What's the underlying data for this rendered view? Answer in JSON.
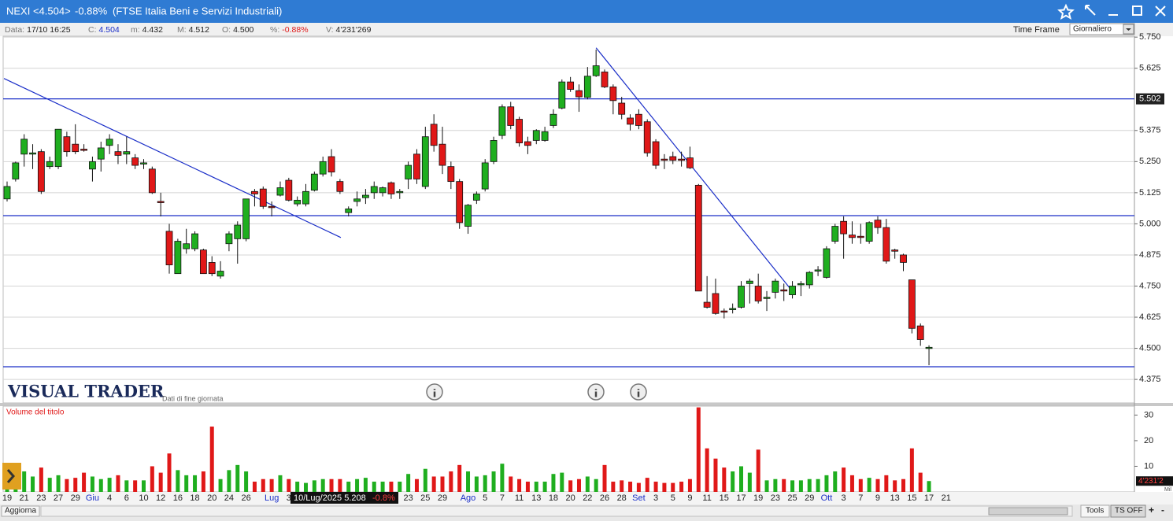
{
  "header": {
    "symbol": "NEXI <4.504>",
    "change": "-0.88%",
    "index_name": "(FTSE Italia Beni e Servizi Industriali)"
  },
  "info_bar": [
    {
      "label": "Data:",
      "value": "17/10 16:25"
    },
    {
      "label": "C:",
      "value": "4.504"
    },
    {
      "label": "m:",
      "value": "4.432"
    },
    {
      "label": "M:",
      "value": "4.512"
    },
    {
      "label": "O:",
      "value": "4.500"
    },
    {
      "label": "%:",
      "value": "-0.88%"
    },
    {
      "label": "V:",
      "value": "4'231'269"
    }
  ],
  "time_frame": {
    "label": "Time Frame",
    "value": "Giornaliero"
  },
  "brand": {
    "name": "VISUAL TRADER",
    "subtitle": "Dati di fine giornata"
  },
  "tooltip": {
    "text": "10/Lug/2025 5.208",
    "change": "-0.8%"
  },
  "footer": {
    "refresh": "Aggiorna",
    "tools": "Tools",
    "ts": "TS OFF"
  },
  "chart_data": [
    {
      "type": "candlestick",
      "up_color": "#1fae1f",
      "down_color": "#e01818",
      "open": [
        5.1,
        5.18,
        5.28,
        5.28,
        5.29,
        5.23,
        5.23,
        5.35,
        5.32,
        5.3,
        5.22,
        5.26,
        5.315,
        5.29,
        5.28,
        5.265,
        5.24,
        5.22,
        5.09,
        4.97,
        4.8,
        4.9,
        4.9,
        4.895,
        4.845,
        4.79,
        4.92,
        4.94,
        4.94,
        5.13,
        5.14,
        5.07,
        5.115,
        5.175,
        5.08,
        5.08,
        5.135,
        5.2,
        5.27,
        5.17,
        5.045,
        5.09,
        5.105,
        5.125,
        5.125,
        5.165,
        5.125,
        5.18,
        5.28,
        5.15,
        5.4,
        5.32,
        5.23,
        5.17,
        4.99,
        5.095,
        5.14,
        5.25,
        5.355,
        5.47,
        5.42,
        5.33,
        5.335,
        5.335,
        5.395,
        5.465,
        5.57,
        5.535,
        5.508,
        5.595,
        5.61,
        5.55,
        5.485,
        5.425,
        5.44,
        5.41,
        5.33,
        5.26,
        5.27,
        5.26,
        5.265,
        5.155,
        4.685,
        4.72,
        4.65,
        4.655,
        4.665,
        4.76,
        4.75,
        4.7,
        4.725,
        4.735,
        4.715,
        4.755,
        4.755,
        4.81,
        4.785,
        4.93,
        5.01,
        4.955,
        4.95,
        4.93,
        5.015,
        4.985,
        4.895,
        4.875,
        4.775,
        4.59,
        4.5,
        null,
        null
      ],
      "high": [
        5.17,
        5.25,
        5.36,
        5.32,
        5.3,
        5.27,
        5.38,
        5.37,
        5.4,
        5.32,
        5.27,
        5.33,
        5.36,
        5.32,
        5.35,
        5.28,
        5.26,
        5.23,
        5.125,
        5.0,
        4.94,
        4.98,
        4.97,
        4.9,
        4.87,
        4.85,
        4.97,
        5.01,
        5.1,
        5.14,
        5.15,
        5.09,
        5.17,
        5.185,
        5.11,
        5.16,
        5.21,
        5.27,
        5.3,
        5.18,
        5.07,
        5.13,
        5.14,
        5.17,
        5.15,
        5.17,
        5.14,
        5.25,
        5.3,
        5.39,
        5.44,
        5.39,
        5.25,
        5.18,
        5.08,
        5.13,
        5.26,
        5.35,
        5.48,
        5.49,
        5.43,
        5.35,
        5.38,
        5.39,
        5.46,
        5.58,
        5.59,
        5.56,
        5.63,
        5.7,
        5.62,
        5.56,
        5.51,
        5.44,
        5.46,
        5.42,
        5.34,
        5.28,
        5.29,
        5.29,
        5.31,
        5.16,
        4.79,
        4.78,
        4.66,
        4.68,
        4.77,
        4.78,
        4.8,
        4.73,
        4.78,
        4.76,
        4.77,
        4.77,
        4.81,
        4.83,
        4.91,
        5.0,
        5.03,
        5.01,
        5.0,
        5.01,
        5.03,
        5.02,
        4.9,
        4.88,
        4.775,
        4.6,
        4.512,
        null,
        null
      ],
      "low": [
        5.09,
        5.17,
        5.23,
        5.22,
        5.12,
        5.22,
        5.22,
        5.27,
        5.28,
        5.29,
        5.17,
        5.21,
        5.28,
        5.24,
        5.24,
        5.22,
        5.22,
        5.12,
        5.03,
        4.8,
        4.8,
        4.88,
        4.89,
        4.8,
        4.79,
        4.78,
        4.89,
        4.84,
        4.93,
        5.07,
        5.06,
        5.03,
        5.11,
        5.09,
        5.07,
        5.07,
        5.13,
        5.19,
        5.19,
        5.12,
        5.03,
        5.07,
        5.08,
        5.1,
        5.11,
        5.1,
        5.1,
        5.14,
        5.16,
        5.14,
        5.29,
        5.2,
        5.14,
        4.98,
        4.96,
        5.08,
        5.13,
        5.24,
        5.34,
        5.38,
        5.31,
        5.28,
        5.32,
        5.33,
        5.385,
        5.46,
        5.53,
        5.45,
        5.5,
        5.59,
        5.545,
        5.44,
        5.42,
        5.375,
        5.38,
        5.27,
        5.22,
        5.22,
        5.24,
        5.23,
        5.22,
        4.73,
        4.66,
        4.635,
        4.62,
        4.64,
        4.66,
        4.68,
        4.68,
        4.65,
        4.7,
        4.69,
        4.7,
        4.71,
        4.74,
        4.79,
        4.78,
        4.92,
        4.86,
        4.92,
        4.92,
        4.92,
        4.96,
        4.84,
        4.86,
        4.81,
        4.56,
        4.51,
        4.432,
        null,
        null
      ],
      "close": [
        5.15,
        5.245,
        5.34,
        5.285,
        5.13,
        5.25,
        5.38,
        5.29,
        5.29,
        5.295,
        5.25,
        5.305,
        5.34,
        5.275,
        5.29,
        5.235,
        5.245,
        5.125,
        5.085,
        4.835,
        4.93,
        4.92,
        4.96,
        4.8,
        4.8,
        4.81,
        4.96,
        4.995,
        5.1,
        5.12,
        5.07,
        5.065,
        5.145,
        5.095,
        5.095,
        5.13,
        5.2,
        5.25,
        5.208,
        5.13,
        5.06,
        5.1,
        5.115,
        5.15,
        5.145,
        5.12,
        5.13,
        5.235,
        5.18,
        5.35,
        5.315,
        5.235,
        5.17,
        5.005,
        5.075,
        5.12,
        5.245,
        5.335,
        5.47,
        5.395,
        5.325,
        5.315,
        5.375,
        5.37,
        5.44,
        5.57,
        5.54,
        5.51,
        5.593,
        5.635,
        5.55,
        5.495,
        5.44,
        5.4,
        5.395,
        5.285,
        5.235,
        5.255,
        5.255,
        5.255,
        5.225,
        4.73,
        4.665,
        4.64,
        4.645,
        4.66,
        4.75,
        4.77,
        4.69,
        4.705,
        4.77,
        4.73,
        4.75,
        4.76,
        4.805,
        4.815,
        4.9,
        4.99,
        4.96,
        4.945,
        4.945,
        5.005,
        4.985,
        4.85,
        4.89,
        4.845,
        4.58,
        4.535,
        4.504,
        null,
        null
      ],
      "ylim": [
        4.29,
        5.76
      ],
      "yticks": [
        4.375,
        {
          "value": 4.5,
          "label": "4.500"
        },
        4.625,
        {
          "value": 4.75,
          "label": "4.750"
        },
        4.875,
        {
          "value": 5,
          "label": "5.000"
        },
        5.125,
        {
          "value": 5.25,
          "label": "5.250"
        },
        5.375,
        5.625,
        {
          "value": 5.75,
          "label": "5.750"
        }
      ],
      "grid": true,
      "hlines": [
        {
          "value": 5.502,
          "color": "#1a2ec8",
          "badge": true
        },
        {
          "value": 5.033,
          "color": "#1a2ec8"
        },
        {
          "value": 4.426,
          "color": "#1a2ec8"
        }
      ],
      "trendlines": [
        {
          "x": [
            -0.37,
            39.1
          ],
          "y": [
            5.584,
            4.945
          ],
          "color": "#1a2ec8"
        },
        {
          "x": [
            69,
            92
          ],
          "y": [
            5.707,
            4.729
          ],
          "color": "#1a2ec8"
        }
      ]
    },
    {
      "type": "bar",
      "title": "Volume del titolo",
      "unit": "Mil",
      "last_label": "4'231'2",
      "categories": [
        "19",
        null,
        "21",
        null,
        "23",
        null,
        "27",
        null,
        "29",
        null,
        "Giu",
        null,
        "4",
        null,
        "6",
        null,
        "10",
        null,
        "12",
        null,
        "16",
        null,
        "18",
        null,
        "20",
        null,
        "24",
        null,
        "26",
        null,
        null,
        "Lug",
        null,
        "3",
        null,
        null,
        null,
        null,
        null,
        null,
        null,
        null,
        null,
        null,
        null,
        null,
        null,
        "23",
        null,
        "25",
        null,
        "29",
        null,
        null,
        "Ago",
        null,
        "5",
        null,
        "7",
        null,
        "11",
        null,
        "13",
        null,
        "18",
        null,
        "20",
        null,
        "22",
        null,
        "26",
        null,
        "28",
        null,
        "Set",
        null,
        "3",
        null,
        "5",
        null,
        "9",
        null,
        "11",
        null,
        "15",
        null,
        "17",
        null,
        "19",
        null,
        "23",
        null,
        "25",
        null,
        "29",
        null,
        "Ott",
        null,
        "3",
        null,
        "7",
        null,
        "9",
        null,
        "13",
        null,
        "15",
        null,
        "17",
        null,
        "21"
      ],
      "values": [
        6,
        8,
        8,
        6,
        9.5,
        5.5,
        6.5,
        5,
        5.5,
        7.5,
        6,
        5,
        5.5,
        6.5,
        4.5,
        4.5,
        4.5,
        10,
        7.5,
        15,
        8.5,
        6.5,
        6.5,
        8,
        25.5,
        5,
        8.5,
        10.5,
        8,
        4,
        5,
        5,
        6.5,
        5,
        4,
        3.5,
        4.5,
        5,
        5,
        5,
        4,
        5,
        5.5,
        4,
        4,
        4,
        4,
        7,
        5,
        9,
        6,
        6,
        8,
        10.5,
        8,
        6,
        6.5,
        8,
        11,
        6,
        5,
        4,
        4,
        4,
        7,
        7.5,
        4.5,
        5,
        6,
        5,
        10.5,
        4,
        4.5,
        4,
        3.5,
        5.5,
        4,
        3.5,
        3.5,
        4,
        5,
        33,
        17,
        13,
        9.5,
        8,
        10,
        7.5,
        16.5,
        4.5,
        5,
        5,
        4.5,
        4.5,
        5,
        5,
        6.5,
        8,
        9.5,
        6.5,
        5,
        5.5,
        5,
        6.5,
        4.5,
        5,
        17,
        7.5,
        4.231269,
        null,
        null
      ],
      "ylim": [
        0,
        33.5
      ],
      "yticks": [
        10,
        20,
        30
      ]
    }
  ]
}
